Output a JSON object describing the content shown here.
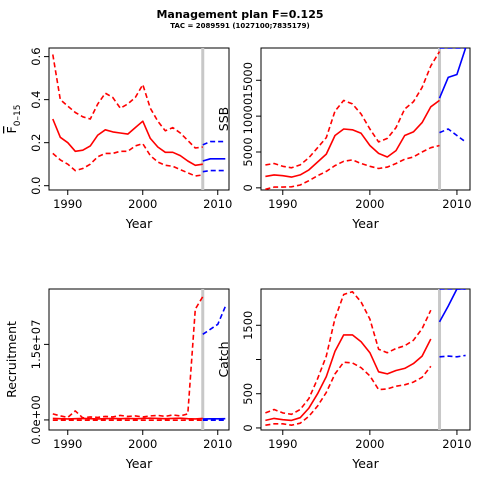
{
  "title": "Management plan F=0.125",
  "subtitle": "TAC = 2089591 (1027100;7835179)",
  "colors": {
    "history": "#ff0000",
    "projection": "#0000ff",
    "current_year_line": "#c8c8c8"
  },
  "chart_data": [
    {
      "type": "line",
      "xlabel": "Year",
      "ylabel": "F̅ 0–15",
      "ylabel_main": "F",
      "ylabel_sub": "0–15",
      "xlim": [
        1987.5,
        2011.5
      ],
      "ylim": [
        -0.02,
        0.64
      ],
      "xticks": [
        1990,
        2000,
        2010
      ],
      "yticks": [
        0.0,
        0.2,
        0.4,
        0.6
      ],
      "ytick_labels": [
        "0.0",
        "0.2",
        "0.4",
        "0.6"
      ],
      "current_year": 2008,
      "history": {
        "x": [
          1988,
          1989,
          1990,
          1991,
          1992,
          1993,
          1994,
          1995,
          1996,
          1997,
          1998,
          1999,
          2000,
          2001,
          2002,
          2003,
          2004,
          2005,
          2006,
          2007,
          2008
        ],
        "median": [
          0.31,
          0.225,
          0.2,
          0.16,
          0.165,
          0.185,
          0.235,
          0.26,
          0.25,
          0.245,
          0.24,
          0.27,
          0.3,
          0.22,
          0.18,
          0.155,
          0.155,
          0.14,
          0.115,
          0.095,
          0.1
        ],
        "lower": [
          0.15,
          0.12,
          0.1,
          0.07,
          0.08,
          0.1,
          0.135,
          0.15,
          0.15,
          0.16,
          0.16,
          0.185,
          0.195,
          0.14,
          0.11,
          0.095,
          0.09,
          0.075,
          0.06,
          0.045,
          0.05
        ],
        "upper": [
          0.61,
          0.4,
          0.37,
          0.34,
          0.32,
          0.31,
          0.38,
          0.43,
          0.41,
          0.36,
          0.38,
          0.41,
          0.47,
          0.36,
          0.3,
          0.255,
          0.27,
          0.245,
          0.21,
          0.175,
          0.18
        ]
      },
      "projection": {
        "x": [
          2008,
          2009,
          2010,
          2011
        ],
        "median": [
          0.115,
          0.125,
          0.125,
          0.125
        ],
        "lower": [
          0.065,
          0.07,
          0.07,
          0.07
        ],
        "upper": [
          0.19,
          0.205,
          0.205,
          0.205
        ]
      }
    },
    {
      "type": "line",
      "xlabel": "Year",
      "ylabel": "SSB",
      "xlim": [
        1987.5,
        2011.5
      ],
      "ylim": [
        -300,
        19500
      ],
      "xticks": [
        1990,
        2000,
        2010
      ],
      "yticks": [
        0,
        5000,
        10000,
        15000
      ],
      "ytick_labels": [
        "0",
        "5000",
        "10000",
        "15000"
      ],
      "current_year": 2008,
      "history": {
        "x": [
          1988,
          1989,
          1990,
          1991,
          1992,
          1993,
          1994,
          1995,
          1996,
          1997,
          1998,
          1999,
          2000,
          2001,
          2002,
          2003,
          2004,
          2005,
          2006,
          2007,
          2008
        ],
        "median": [
          1600,
          1800,
          1700,
          1500,
          1800,
          2500,
          3600,
          4700,
          7300,
          8200,
          8100,
          7600,
          5900,
          4800,
          4300,
          5200,
          7300,
          7800,
          9100,
          11300,
          12200
        ],
        "lower": [
          -200,
          100,
          100,
          150,
          400,
          1000,
          1700,
          2300,
          3100,
          3700,
          3900,
          3400,
          3000,
          2700,
          2900,
          3400,
          4000,
          4300,
          5000,
          5600,
          5900
        ],
        "upper": [
          3200,
          3400,
          3000,
          2800,
          3200,
          4200,
          5600,
          7000,
          10700,
          12200,
          11700,
          10300,
          8200,
          6400,
          6900,
          8400,
          11000,
          12000,
          14000,
          17000,
          19000
        ]
      },
      "projection": {
        "x": [
          2008,
          2009,
          2010,
          2011
        ],
        "median": [
          12500,
          15400,
          15800,
          19500
        ],
        "lower": [
          7700,
          8200,
          7300,
          6400
        ],
        "upper": [
          19500,
          19500,
          19500,
          19500
        ]
      }
    },
    {
      "type": "line",
      "xlabel": "Year",
      "ylabel": "Recruitment",
      "xlim": [
        1987.5,
        2011.5
      ],
      "ylim": [
        -2000000,
        26000000
      ],
      "xticks": [
        1990,
        2000,
        2010
      ],
      "yticks": [
        0,
        15000000
      ],
      "ytick_labels": [
        "0.0e+00",
        "1.5e+07"
      ],
      "current_year": 2008,
      "history": {
        "x": [
          1988,
          1989,
          1990,
          1991,
          1992,
          1993,
          1994,
          1995,
          1996,
          1997,
          1998,
          1999,
          2000,
          2001,
          2002,
          2003,
          2004,
          2005,
          2006,
          2007,
          2008
        ],
        "median": [
          300000,
          250000,
          200000,
          250000,
          300000,
          250000,
          200000,
          250000,
          300000,
          250000,
          300000,
          250000,
          300000,
          350000,
          300000,
          250000,
          300000,
          350000,
          250000,
          200000,
          300000
        ],
        "lower": [
          -50000,
          -50000,
          -50000,
          -50000,
          -50000,
          -50000,
          -50000,
          -50000,
          -50000,
          -50000,
          -50000,
          -50000,
          -50000,
          -50000,
          -50000,
          -50000,
          -50000,
          -50000,
          -50000,
          -50000,
          -50000
        ],
        "upper": [
          1200000,
          800000,
          500000,
          1800000,
          400000,
          600000,
          500000,
          700000,
          600000,
          900000,
          700000,
          800000,
          600000,
          800000,
          900000,
          700000,
          1000000,
          800000,
          1200000,
          22000000,
          24500000
        ]
      },
      "projection": {
        "x": [
          2008,
          2009,
          2010,
          2011
        ],
        "median": [
          200000,
          220000,
          230000,
          240000
        ],
        "lower": [
          -50000,
          -50000,
          -50000,
          -50000
        ],
        "upper": [
          17000000,
          18000000,
          19000000,
          22500000
        ]
      }
    },
    {
      "type": "line",
      "xlabel": "Year",
      "ylabel": "Catch",
      "xlim": [
        1987.5,
        2011.5
      ],
      "ylim": [
        -30,
        2030
      ],
      "xticks": [
        1990,
        2000,
        2010
      ],
      "yticks": [
        0,
        500,
        1000,
        1500
      ],
      "ytick_labels": [
        "0",
        "500",
        "",
        "1500"
      ],
      "current_year": 2008,
      "history": {
        "x": [
          1988,
          1989,
          1990,
          1991,
          1992,
          1993,
          1994,
          1995,
          1996,
          1997,
          1998,
          1999,
          2000,
          2001,
          2002,
          2003,
          2004,
          2005,
          2006,
          2007
        ],
        "median": [
          110,
          140,
          120,
          110,
          150,
          290,
          500,
          750,
          1120,
          1360,
          1360,
          1260,
          1100,
          820,
          790,
          840,
          870,
          940,
          1050,
          1300
        ],
        "lower": [
          40,
          60,
          60,
          40,
          70,
          170,
          320,
          520,
          790,
          960,
          950,
          880,
          760,
          560,
          570,
          610,
          630,
          670,
          740,
          900
        ],
        "upper": [
          220,
          270,
          220,
          200,
          270,
          430,
          720,
          1050,
          1600,
          1950,
          1990,
          1840,
          1590,
          1150,
          1100,
          1160,
          1200,
          1280,
          1450,
          1720
        ]
      },
      "projection": {
        "x": [
          2008,
          2009,
          2010,
          2011
        ],
        "median": [
          1550,
          1780,
          2030,
          2030
        ],
        "lower": [
          1040,
          1050,
          1040,
          1060
        ],
        "upper": [
          2030,
          2030,
          2030,
          2030
        ]
      }
    }
  ]
}
